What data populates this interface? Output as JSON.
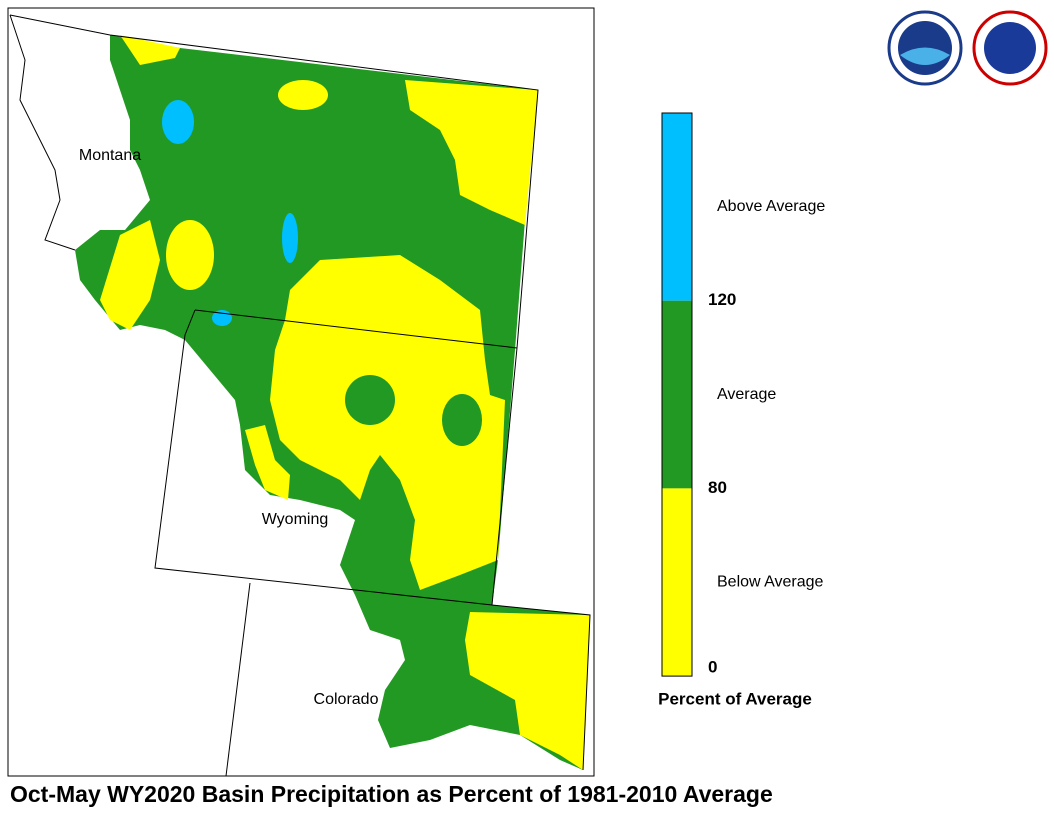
{
  "map": {
    "title": "Oct-May WY2020 Basin Precipitation as Percent of 1981-2010 Average",
    "state_labels": [
      "Montana",
      "Wyoming",
      "Colorado"
    ],
    "legend": {
      "title": "Percent of Average",
      "classes": [
        {
          "label": "Above Average",
          "color": "#00bfff"
        },
        {
          "label": "Average",
          "color": "#229922"
        },
        {
          "label": "Below Average",
          "color": "#ffff00"
        }
      ],
      "ticks": [
        120,
        80,
        0
      ]
    }
  }
}
